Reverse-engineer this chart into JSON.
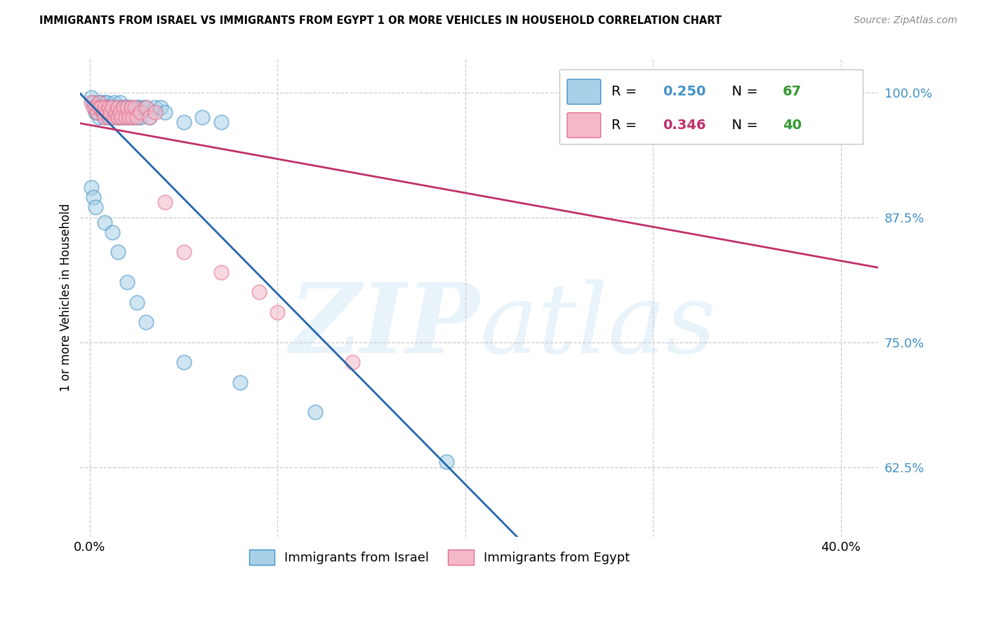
{
  "title": "IMMIGRANTS FROM ISRAEL VS IMMIGRANTS FROM EGYPT 1 OR MORE VEHICLES IN HOUSEHOLD CORRELATION CHART",
  "source": "Source: ZipAtlas.com",
  "ylabel": "1 or more Vehicles in Household",
  "israel_color": "#a8d0e8",
  "israel_edge": "#4292c6",
  "egypt_color": "#f4b8c8",
  "egypt_edge": "#e07090",
  "israel_line_color": "#2166ac",
  "egypt_line_color": "#d63c6b",
  "R_israel": 0.25,
  "N_israel": 67,
  "R_egypt": 0.346,
  "N_egypt": 40,
  "israel_x": [
    0.001,
    0.002,
    0.003,
    0.003,
    0.004,
    0.004,
    0.005,
    0.005,
    0.005,
    0.006,
    0.006,
    0.007,
    0.007,
    0.008,
    0.008,
    0.008,
    0.009,
    0.009,
    0.01,
    0.01,
    0.01,
    0.011,
    0.011,
    0.012,
    0.012,
    0.013,
    0.013,
    0.014,
    0.015,
    0.015,
    0.016,
    0.016,
    0.017,
    0.018,
    0.018,
    0.019,
    0.02,
    0.02,
    0.021,
    0.022,
    0.023,
    0.025,
    0.025,
    0.026,
    0.027,
    0.028,
    0.03,
    0.032,
    0.035,
    0.038,
    0.04,
    0.05,
    0.06,
    0.07,
    0.001,
    0.002,
    0.003,
    0.008,
    0.012,
    0.015,
    0.02,
    0.025,
    0.03,
    0.05,
    0.08,
    0.12,
    0.19
  ],
  "israel_y": [
    0.995,
    0.99,
    0.985,
    0.98,
    0.985,
    0.98,
    0.99,
    0.985,
    0.975,
    0.99,
    0.985,
    0.985,
    0.98,
    0.99,
    0.985,
    0.975,
    0.99,
    0.985,
    0.985,
    0.98,
    0.975,
    0.985,
    0.98,
    0.985,
    0.975,
    0.99,
    0.98,
    0.985,
    0.985,
    0.975,
    0.99,
    0.975,
    0.985,
    0.985,
    0.975,
    0.985,
    0.985,
    0.975,
    0.985,
    0.985,
    0.975,
    0.985,
    0.975,
    0.985,
    0.975,
    0.985,
    0.985,
    0.975,
    0.985,
    0.985,
    0.98,
    0.97,
    0.975,
    0.97,
    0.905,
    0.895,
    0.885,
    0.87,
    0.86,
    0.84,
    0.81,
    0.79,
    0.77,
    0.73,
    0.71,
    0.68,
    0.63
  ],
  "egypt_x": [
    0.001,
    0.002,
    0.003,
    0.004,
    0.005,
    0.005,
    0.006,
    0.007,
    0.008,
    0.008,
    0.009,
    0.01,
    0.01,
    0.011,
    0.012,
    0.013,
    0.014,
    0.015,
    0.015,
    0.016,
    0.017,
    0.018,
    0.019,
    0.02,
    0.021,
    0.022,
    0.023,
    0.024,
    0.025,
    0.027,
    0.03,
    0.032,
    0.035,
    0.04,
    0.05,
    0.07,
    0.09,
    0.1,
    0.14,
    0.38
  ],
  "egypt_y": [
    0.99,
    0.985,
    0.985,
    0.98,
    0.99,
    0.985,
    0.985,
    0.98,
    0.985,
    0.975,
    0.98,
    0.985,
    0.975,
    0.98,
    0.985,
    0.975,
    0.98,
    0.985,
    0.975,
    0.98,
    0.975,
    0.985,
    0.975,
    0.985,
    0.975,
    0.985,
    0.975,
    0.985,
    0.975,
    0.98,
    0.985,
    0.975,
    0.98,
    0.89,
    0.84,
    0.82,
    0.8,
    0.78,
    0.73,
    1.0
  ],
  "x_min": -0.005,
  "x_max": 0.42,
  "y_min": 0.555,
  "y_max": 1.035,
  "yticks": [
    0.625,
    0.75,
    0.875,
    1.0
  ],
  "ytick_str": [
    "62.5%",
    "75.0%",
    "87.5%",
    "100.0%"
  ],
  "xticks": [
    0.0,
    0.1,
    0.2,
    0.3,
    0.4
  ],
  "xtick_labels": [
    "0.0%",
    "",
    "",
    "",
    "40.0%"
  ],
  "grid_color": "#cccccc",
  "watermark_zip": "ZIP",
  "watermark_atlas": "atlas",
  "legend_israel_label": "Immigrants from Israel",
  "legend_egypt_label": "Immigrants from Egypt",
  "r_color_blue": "#4292c6",
  "n_color_green": "#339933",
  "egypt_r_color": "#c0306a"
}
